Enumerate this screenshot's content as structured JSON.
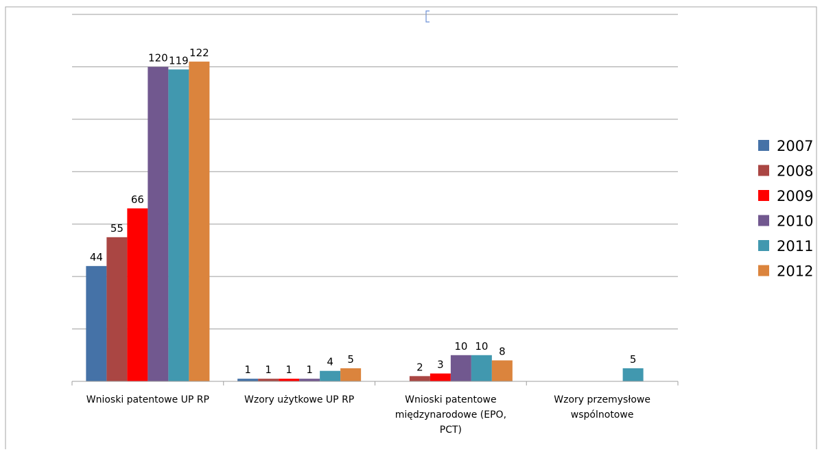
{
  "chart_data": {
    "type": "bar",
    "title": "",
    "xlabel": "",
    "ylabel": "",
    "ylim": [
      0,
      140
    ],
    "grid": true,
    "legend_position": "right",
    "categories": [
      [
        "Wnioski patentowe UP RP"
      ],
      [
        "Wzory użytkowe UP RP"
      ],
      [
        "Wnioski patentowe",
        "międzynarodowe (EPO,",
        "PCT)"
      ],
      [
        "Wzory przemysłowe",
        "wspólnotowe"
      ]
    ],
    "series": [
      {
        "name": "2007",
        "color": "#4572A7",
        "values": [
          44,
          1,
          null,
          null
        ]
      },
      {
        "name": "2008",
        "color": "#AA4643",
        "values": [
          55,
          1,
          2,
          null
        ]
      },
      {
        "name": "2009",
        "color": "#FF0000",
        "values": [
          66,
          1,
          3,
          null
        ]
      },
      {
        "name": "2010",
        "color": "#71588F",
        "values": [
          120,
          1,
          10,
          null
        ]
      },
      {
        "name": "2011",
        "color": "#4198AF",
        "values": [
          119,
          4,
          10,
          5
        ]
      },
      {
        "name": "2012",
        "color": "#DB843D",
        "values": [
          122,
          5,
          8,
          null
        ]
      }
    ]
  }
}
